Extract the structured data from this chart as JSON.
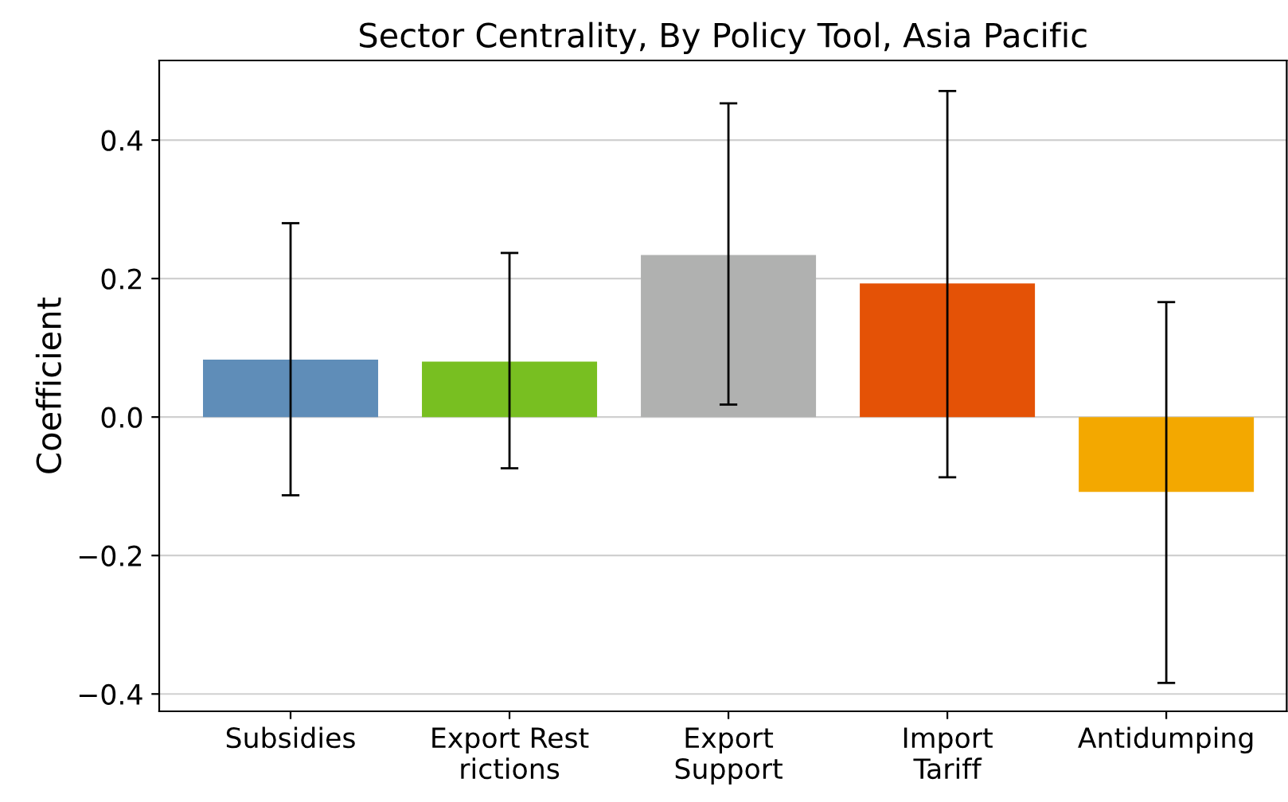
{
  "chart_data": {
    "type": "bar",
    "title": "Sector Centrality, By Policy Tool, Asia Pacific",
    "ylabel": "Coefficient",
    "categories": [
      "Subsidies",
      "Export Rest\nrictions",
      "Export\nSupport",
      "Import\nTariff",
      "Antidumping"
    ],
    "values": [
      0.083,
      0.08,
      0.234,
      0.193,
      -0.108
    ],
    "colors": [
      "#5f8db8",
      "#78bf21",
      "#b0b1b0",
      "#e45206",
      "#f3a800"
    ],
    "errors": [
      [
        -0.113,
        0.28
      ],
      [
        -0.074,
        0.237
      ],
      [
        0.018,
        0.453
      ],
      [
        -0.087,
        0.471
      ],
      [
        -0.384,
        0.166
      ]
    ],
    "ylim": [
      -0.425,
      0.515
    ],
    "yticks": [
      {
        "value": -0.4,
        "label": "−0.4"
      },
      {
        "value": -0.2,
        "label": "−0.2"
      },
      {
        "value": 0.0,
        "label": "0.0"
      },
      {
        "value": 0.2,
        "label": "0.2"
      },
      {
        "value": 0.4,
        "label": "0.4"
      }
    ],
    "grid": "y"
  }
}
